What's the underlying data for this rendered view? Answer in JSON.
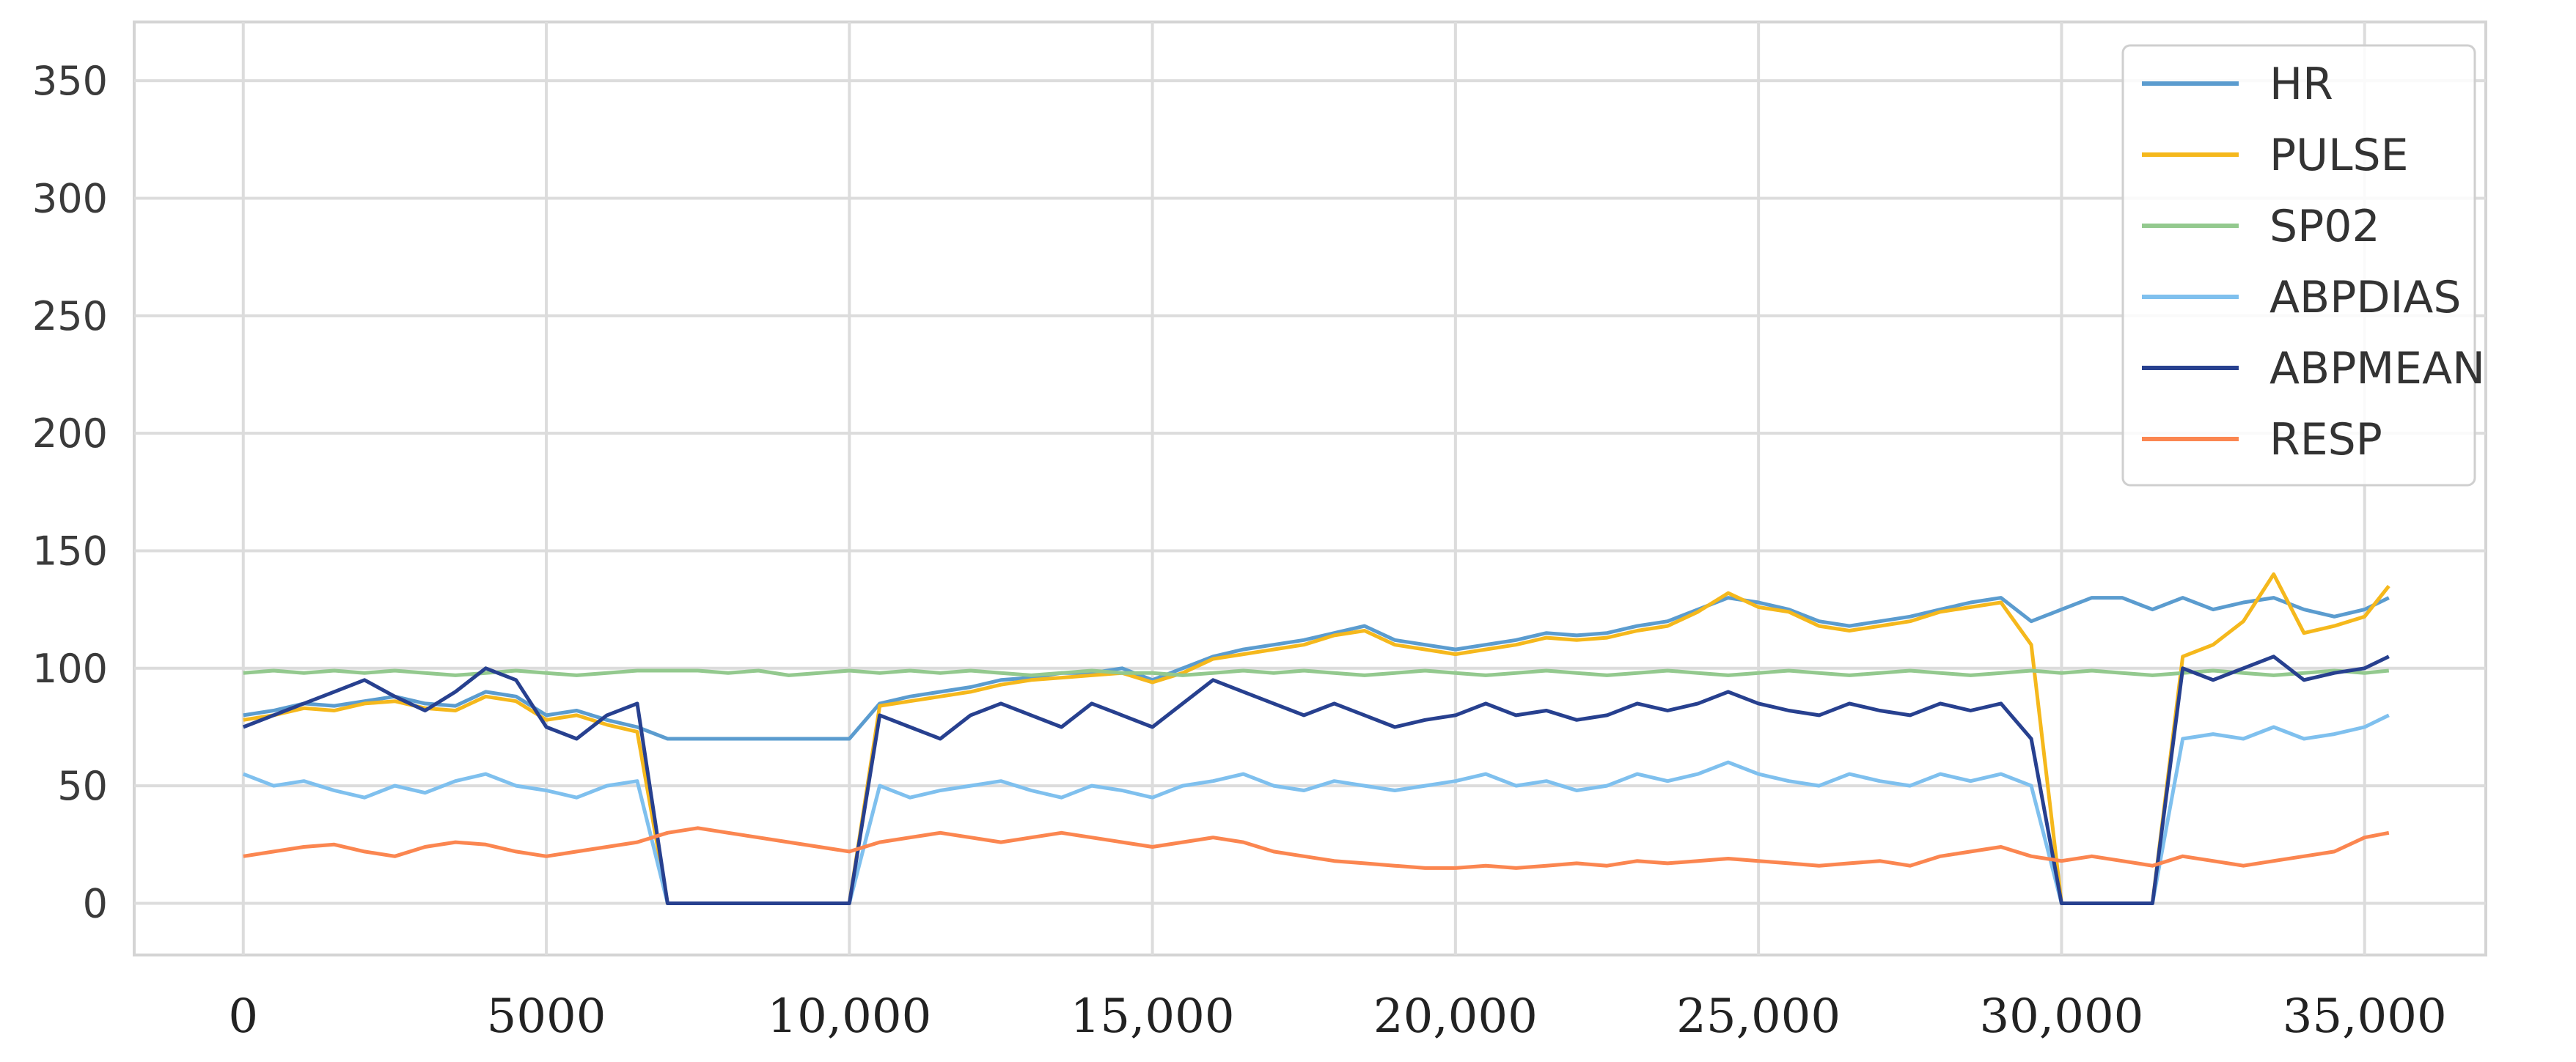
{
  "chart_data": {
    "type": "line",
    "title": "",
    "xlabel": "",
    "ylabel": "",
    "xlim": [
      -1800,
      37000
    ],
    "ylim": [
      -22,
      375
    ],
    "x_ticks": [
      0,
      5000,
      10000,
      15000,
      20000,
      25000,
      30000,
      35000
    ],
    "x_tick_labels": [
      "0",
      "5000",
      "10,000",
      "15,000",
      "20,000",
      "25,000",
      "30,000",
      "35,000"
    ],
    "y_ticks": [
      0,
      50,
      100,
      150,
      200,
      250,
      300,
      350
    ],
    "y_tick_labels": [
      "0",
      "50",
      "100",
      "150",
      "200",
      "250",
      "300",
      "350"
    ],
    "grid": true,
    "legend_position": "top-right",
    "series": [
      {
        "name": "HR",
        "color": "#5b9ccf",
        "x": [
          0,
          500,
          1000,
          1500,
          2000,
          2500,
          3000,
          3500,
          4000,
          4500,
          5000,
          5500,
          6000,
          6500,
          7000,
          7500,
          8000,
          8500,
          9000,
          9500,
          10000,
          10500,
          11000,
          11500,
          12000,
          12500,
          13000,
          13500,
          14000,
          14500,
          15000,
          15500,
          16000,
          16500,
          17000,
          17500,
          18000,
          18500,
          19000,
          19500,
          20000,
          20500,
          21000,
          21500,
          22000,
          22500,
          23000,
          23500,
          24000,
          24500,
          25000,
          25500,
          26000,
          26500,
          27000,
          27500,
          28000,
          28500,
          29000,
          29500,
          30000,
          30500,
          31000,
          31500,
          32000,
          32500,
          33000,
          33500,
          34000,
          34500,
          35000,
          35400
        ],
        "values": [
          80,
          82,
          85,
          84,
          86,
          88,
          85,
          84,
          90,
          88,
          80,
          82,
          78,
          75,
          70,
          70,
          70,
          70,
          70,
          70,
          70,
          85,
          88,
          90,
          92,
          95,
          96,
          98,
          98,
          100,
          95,
          100,
          105,
          108,
          110,
          112,
          115,
          118,
          112,
          110,
          108,
          110,
          112,
          115,
          114,
          115,
          118,
          120,
          125,
          130,
          128,
          125,
          120,
          118,
          120,
          122,
          125,
          128,
          130,
          120,
          125,
          130,
          130,
          125,
          130,
          125,
          128,
          130,
          125,
          122,
          125,
          130
        ]
      },
      {
        "name": "PULSE",
        "color": "#f5b81c",
        "x": [
          0,
          500,
          1000,
          1500,
          2000,
          2500,
          3000,
          3500,
          4000,
          4500,
          5000,
          5500,
          6000,
          6500,
          7000,
          7500,
          8000,
          8500,
          9000,
          9500,
          10000,
          10500,
          11000,
          11500,
          12000,
          12500,
          13000,
          13500,
          14000,
          14500,
          15000,
          15500,
          16000,
          16500,
          17000,
          17500,
          18000,
          18500,
          19000,
          19500,
          20000,
          20500,
          21000,
          21500,
          22000,
          22500,
          23000,
          23500,
          24000,
          24500,
          25000,
          25500,
          26000,
          26500,
          27000,
          27500,
          28000,
          28500,
          29000,
          29500,
          30000,
          30500,
          31000,
          31500,
          32000,
          32500,
          33000,
          33500,
          34000,
          34500,
          35000,
          35400
        ],
        "values": [
          78,
          80,
          83,
          82,
          85,
          86,
          83,
          82,
          88,
          86,
          78,
          80,
          76,
          73,
          0,
          0,
          0,
          0,
          0,
          0,
          0,
          84,
          86,
          88,
          90,
          93,
          95,
          96,
          97,
          98,
          94,
          98,
          104,
          106,
          108,
          110,
          114,
          116,
          110,
          108,
          106,
          108,
          110,
          113,
          112,
          113,
          116,
          118,
          124,
          132,
          126,
          124,
          118,
          116,
          118,
          120,
          124,
          126,
          128,
          110,
          0,
          0,
          0,
          0,
          105,
          110,
          120,
          140,
          115,
          118,
          122,
          135
        ]
      },
      {
        "name": "SP02",
        "color": "#93c98e",
        "x": [
          0,
          500,
          1000,
          1500,
          2000,
          2500,
          3000,
          3500,
          4000,
          4500,
          5000,
          5500,
          6000,
          6500,
          7000,
          7500,
          8000,
          8500,
          9000,
          9500,
          10000,
          10500,
          11000,
          11500,
          12000,
          12500,
          13000,
          13500,
          14000,
          14500,
          15000,
          15500,
          16000,
          16500,
          17000,
          17500,
          18000,
          18500,
          19000,
          19500,
          20000,
          20500,
          21000,
          21500,
          22000,
          22500,
          23000,
          23500,
          24000,
          24500,
          25000,
          25500,
          26000,
          26500,
          27000,
          27500,
          28000,
          28500,
          29000,
          29500,
          30000,
          30500,
          31000,
          31500,
          32000,
          32500,
          33000,
          33500,
          34000,
          34500,
          35000,
          35400
        ],
        "values": [
          98,
          99,
          98,
          99,
          98,
          99,
          98,
          97,
          98,
          99,
          98,
          97,
          98,
          99,
          99,
          99,
          98,
          99,
          97,
          98,
          99,
          98,
          99,
          98,
          99,
          98,
          97,
          98,
          99,
          98,
          98,
          97,
          98,
          99,
          98,
          99,
          98,
          97,
          98,
          99,
          98,
          97,
          98,
          99,
          98,
          97,
          98,
          99,
          98,
          97,
          98,
          99,
          98,
          97,
          98,
          99,
          98,
          97,
          98,
          99,
          98,
          99,
          98,
          97,
          98,
          99,
          98,
          97,
          98,
          99,
          98,
          99
        ]
      },
      {
        "name": "ABPDIAS",
        "color": "#7fc0ee",
        "x": [
          0,
          500,
          1000,
          1500,
          2000,
          2500,
          3000,
          3500,
          4000,
          4500,
          5000,
          5500,
          6000,
          6500,
          7000,
          7500,
          8000,
          8500,
          9000,
          9500,
          10000,
          10500,
          11000,
          11500,
          12000,
          12500,
          13000,
          13500,
          14000,
          14500,
          15000,
          15500,
          16000,
          16500,
          17000,
          17500,
          18000,
          18500,
          19000,
          19500,
          20000,
          20500,
          21000,
          21500,
          22000,
          22500,
          23000,
          23500,
          24000,
          24500,
          25000,
          25500,
          26000,
          26500,
          27000,
          27500,
          28000,
          28500,
          29000,
          29500,
          30000,
          30500,
          31000,
          31500,
          32000,
          32500,
          33000,
          33500,
          34000,
          34500,
          35000,
          35400
        ],
        "values": [
          55,
          50,
          52,
          48,
          45,
          50,
          47,
          52,
          55,
          50,
          48,
          45,
          50,
          52,
          0,
          0,
          0,
          0,
          0,
          0,
          0,
          50,
          45,
          48,
          50,
          52,
          48,
          45,
          50,
          48,
          45,
          50,
          52,
          55,
          50,
          48,
          52,
          50,
          48,
          50,
          52,
          55,
          50,
          52,
          48,
          50,
          55,
          52,
          55,
          60,
          55,
          52,
          50,
          55,
          52,
          50,
          55,
          52,
          55,
          50,
          0,
          0,
          0,
          0,
          70,
          72,
          70,
          75,
          70,
          72,
          75,
          80
        ]
      },
      {
        "name": "ABPMEAN",
        "color": "#27408f",
        "x": [
          0,
          500,
          1000,
          1500,
          2000,
          2500,
          3000,
          3500,
          4000,
          4500,
          5000,
          5500,
          6000,
          6500,
          7000,
          7500,
          8000,
          8500,
          9000,
          9500,
          10000,
          10500,
          11000,
          11500,
          12000,
          12500,
          13000,
          13500,
          14000,
          14500,
          15000,
          15500,
          16000,
          16500,
          17000,
          17500,
          18000,
          18500,
          19000,
          19500,
          20000,
          20500,
          21000,
          21500,
          22000,
          22500,
          23000,
          23500,
          24000,
          24500,
          25000,
          25500,
          26000,
          26500,
          27000,
          27500,
          28000,
          28500,
          29000,
          29500,
          30000,
          30500,
          31000,
          31500,
          32000,
          32500,
          33000,
          33500,
          34000,
          34500,
          35000,
          35400
        ],
        "values": [
          75,
          80,
          85,
          90,
          95,
          88,
          82,
          90,
          100,
          95,
          75,
          70,
          80,
          85,
          0,
          0,
          0,
          0,
          0,
          0,
          0,
          80,
          75,
          70,
          80,
          85,
          80,
          75,
          85,
          80,
          75,
          85,
          95,
          90,
          85,
          80,
          85,
          80,
          75,
          78,
          80,
          85,
          80,
          82,
          78,
          80,
          85,
          82,
          85,
          90,
          85,
          82,
          80,
          85,
          82,
          80,
          85,
          82,
          85,
          70,
          0,
          0,
          0,
          0,
          100,
          95,
          100,
          105,
          95,
          98,
          100,
          105
        ]
      },
      {
        "name": "RESP",
        "color": "#fb8650",
        "x": [
          0,
          500,
          1000,
          1500,
          2000,
          2500,
          3000,
          3500,
          4000,
          4500,
          5000,
          5500,
          6000,
          6500,
          7000,
          7500,
          8000,
          8500,
          9000,
          9500,
          10000,
          10500,
          11000,
          11500,
          12000,
          12500,
          13000,
          13500,
          14000,
          14500,
          15000,
          15500,
          16000,
          16500,
          17000,
          17500,
          18000,
          18500,
          19000,
          19500,
          20000,
          20500,
          21000,
          21500,
          22000,
          22500,
          23000,
          23500,
          24000,
          24500,
          25000,
          25500,
          26000,
          26500,
          27000,
          27500,
          28000,
          28500,
          29000,
          29500,
          30000,
          30500,
          31000,
          31500,
          32000,
          32500,
          33000,
          33500,
          34000,
          34500,
          35000,
          35400
        ],
        "values": [
          20,
          22,
          24,
          25,
          22,
          20,
          24,
          26,
          25,
          22,
          20,
          22,
          24,
          26,
          30,
          32,
          30,
          28,
          26,
          24,
          22,
          26,
          28,
          30,
          28,
          26,
          28,
          30,
          28,
          26,
          24,
          26,
          28,
          26,
          22,
          20,
          18,
          17,
          16,
          15,
          15,
          16,
          15,
          16,
          17,
          16,
          18,
          17,
          18,
          19,
          18,
          17,
          16,
          17,
          18,
          16,
          20,
          22,
          24,
          20,
          18,
          20,
          18,
          16,
          20,
          18,
          16,
          18,
          20,
          22,
          28,
          30
        ]
      }
    ]
  }
}
